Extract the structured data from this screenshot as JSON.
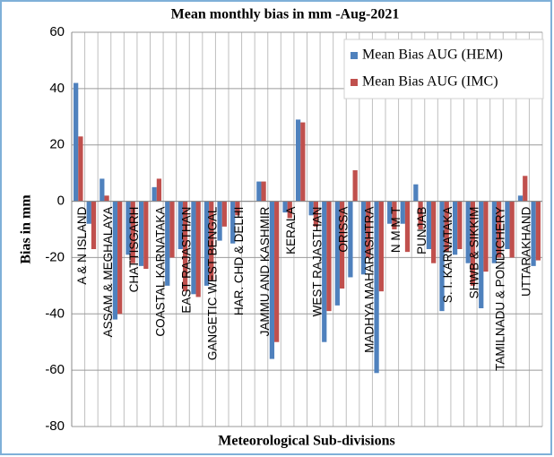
{
  "chart_data": {
    "type": "bar",
    "title": "Mean monthly bias in mm -Aug-2021",
    "y_label": "Bias in mm",
    "x_label": "Meteorological Sub-divisions",
    "categories": [
      "A & N ISLAND",
      null,
      "ASSAM & MEGHALAYA",
      null,
      "CHATTISGARH",
      null,
      "COASTAL KARNATAKA",
      null,
      "EAST RAJASTHAN",
      null,
      "GANGETIC WEST BENGAL",
      null,
      "HAR. CHD & DELHI",
      null,
      "JAMMU AND KASHMIR",
      null,
      "KERALA",
      null,
      "WEST RAJASTHAN",
      null,
      "ORISSA",
      null,
      "MADHYA MAHARASHTRA",
      null,
      "N M M T",
      null,
      "PUNJAB",
      null,
      "S. I. KARNATAKA",
      null,
      "SHWB & SIKKIM",
      null,
      "TAMILNADU & PONDICHERY",
      null,
      "UTTARAKHAND",
      null
    ],
    "series": [
      {
        "name": "Mean Bias AUG (HEM)",
        "color": "#4f81bd",
        "values": [
          42,
          -8,
          8,
          -42,
          -19,
          -23,
          5,
          -30,
          -17,
          -33,
          -30,
          -14,
          -15,
          0,
          7,
          -56,
          -4,
          29,
          -5,
          -50,
          -37,
          -27,
          -26,
          -61,
          -8,
          -8,
          6,
          -17,
          -39,
          -19,
          -22,
          -38,
          -22,
          -17,
          2,
          -23
        ]
      },
      {
        "name": "Mean Bias AUG (IMC)",
        "color": "#c0504d",
        "values": [
          23,
          -17,
          2,
          -40,
          -22,
          -24,
          8,
          -20,
          -32,
          -34,
          -28,
          -9,
          -5,
          0,
          7,
          -50,
          -6,
          28,
          -9,
          -39,
          -31,
          11,
          -20,
          -32,
          -10,
          -18,
          -10,
          -22,
          -18,
          -17,
          -30,
          -25,
          -20,
          -20,
          9,
          -21
        ]
      }
    ],
    "ylim": [
      -80,
      60
    ],
    "yticks": [
      -80,
      -60,
      -40,
      -20,
      0,
      20,
      40,
      60
    ],
    "grid": true,
    "legend": "top-right"
  }
}
